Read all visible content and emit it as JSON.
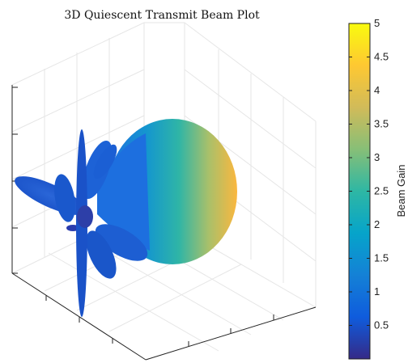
{
  "chart_data": {
    "type": "surface3d",
    "title": "3D Quiescent Transmit Beam Plot",
    "colorbar": {
      "label": "Beam Gain",
      "range": [
        0,
        5
      ],
      "ticks": [
        "0.5",
        "1",
        "1.5",
        "2",
        "2.5",
        "3",
        "3.5",
        "4",
        "4.5",
        "5"
      ],
      "tick_values": [
        0.5,
        1,
        1.5,
        2,
        2.5,
        3,
        3.5,
        4,
        4.5,
        5
      ],
      "colormap": "parula"
    },
    "main_lobe": {
      "peak_gain": 5
    },
    "side_lobes": {
      "approx_gain": 1
    },
    "grid": true,
    "tick_labels_shown": false
  },
  "colors": {
    "parula": [
      "#352a87",
      "#0f5cdd",
      "#1481d6",
      "#06a4ca",
      "#2eb7a4",
      "#87bf77",
      "#d1bb59",
      "#fec832",
      "#f9fb0e"
    ]
  }
}
